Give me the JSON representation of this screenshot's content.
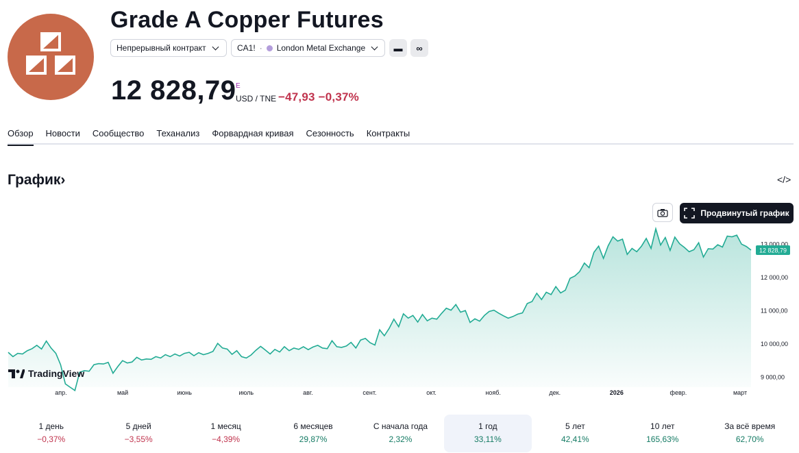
{
  "header": {
    "title": "Grade A Copper Futures",
    "contract_type": "Непрерывный контракт",
    "symbol": "CA1!",
    "exchange": "London Metal Exchange",
    "btn_minus": "▬",
    "btn_infinity": "∞"
  },
  "quote": {
    "price": "12 828,79",
    "e_mark": "E",
    "unit": "USD / TNE",
    "change_abs": "−47,93",
    "change_pct": "−0,37%"
  },
  "tabs": [
    "Обзор",
    "Новости",
    "Сообщество",
    "Теханализ",
    "Форвардная кривая",
    "Сезонность",
    "Контракты"
  ],
  "chart_section": {
    "title": "График",
    "advanced_button": "Продвинутый график",
    "watermark": "TradingView",
    "embed_icon": "</>",
    "accent_color": "#22ab94"
  },
  "chart_data": {
    "type": "area",
    "x_labels": [
      "апр.",
      "май",
      "июнь",
      "июль",
      "авг.",
      "сент.",
      "окт.",
      "нояб.",
      "дек.",
      "2026",
      "февр.",
      "март"
    ],
    "y_ticks": [
      "13 000,00",
      "12 000,00",
      "11 000,00",
      "10 000,00",
      "9 000,00"
    ],
    "y_tick_values": [
      13000,
      12000,
      11000,
      10000,
      9000
    ],
    "ylim": [
      8700,
      13550
    ],
    "last_value_label": "12 828,79",
    "last_value": 12828.79,
    "values": [
      9750,
      9620,
      9720,
      9700,
      9800,
      9860,
      9960,
      9850,
      10090,
      9880,
      9720,
      9380,
      8800,
      8700,
      8600,
      9150,
      9200,
      9180,
      9380,
      9410,
      9400,
      9450,
      9120,
      9320,
      9500,
      9430,
      9460,
      9600,
      9520,
      9550,
      9540,
      9620,
      9580,
      9680,
      9620,
      9700,
      9640,
      9720,
      9750,
      9650,
      9740,
      9680,
      9720,
      9780,
      10020,
      9880,
      9850,
      9690,
      9800,
      9620,
      9580,
      9670,
      9810,
      9930,
      9820,
      9700,
      9840,
      9760,
      9920,
      9800,
      9880,
      9840,
      9920,
      9830,
      9910,
      9960,
      9880,
      9860,
      10100,
      9920,
      9900,
      9940,
      10050,
      9880,
      10120,
      10170,
      10040,
      9970,
      10430,
      10250,
      10470,
      10750,
      10520,
      10910,
      10780,
      10860,
      10660,
      10890,
      10700,
      10780,
      10750,
      10920,
      11080,
      11020,
      11190,
      10960,
      11010,
      10650,
      10760,
      10690,
      10860,
      10980,
      11020,
      10930,
      10850,
      10780,
      10830,
      10900,
      10940,
      11220,
      11280,
      11530,
      11340,
      11560,
      11490,
      11730,
      11540,
      11620,
      11980,
      12050,
      12180,
      12440,
      12300,
      12760,
      12950,
      12580,
      12960,
      13230,
      13100,
      13160,
      12700,
      12880,
      12780,
      12950,
      13180,
      12880,
      13470,
      12980,
      13210,
      12820,
      13220,
      13020,
      12910,
      12780,
      12840,
      13050,
      12620,
      12870,
      12860,
      12990,
      12920,
      13250,
      13230,
      13280,
      13010,
      12940,
      12828.79
    ]
  },
  "performance": [
    {
      "label": "1 день",
      "value": "−0,37%",
      "sign": "neg"
    },
    {
      "label": "5 дней",
      "value": "−3,55%",
      "sign": "neg"
    },
    {
      "label": "1 месяц",
      "value": "−4,39%",
      "sign": "neg"
    },
    {
      "label": "6 месяцев",
      "value": "29,87%",
      "sign": "pos"
    },
    {
      "label": "С начала года",
      "value": "2,32%",
      "sign": "pos"
    },
    {
      "label": "1 год",
      "value": "33,11%",
      "sign": "pos",
      "selected": true
    },
    {
      "label": "5 лет",
      "value": "42,41%",
      "sign": "pos"
    },
    {
      "label": "10 лет",
      "value": "165,63%",
      "sign": "pos"
    },
    {
      "label": "За всё время",
      "value": "62,70%",
      "sign": "pos"
    }
  ]
}
